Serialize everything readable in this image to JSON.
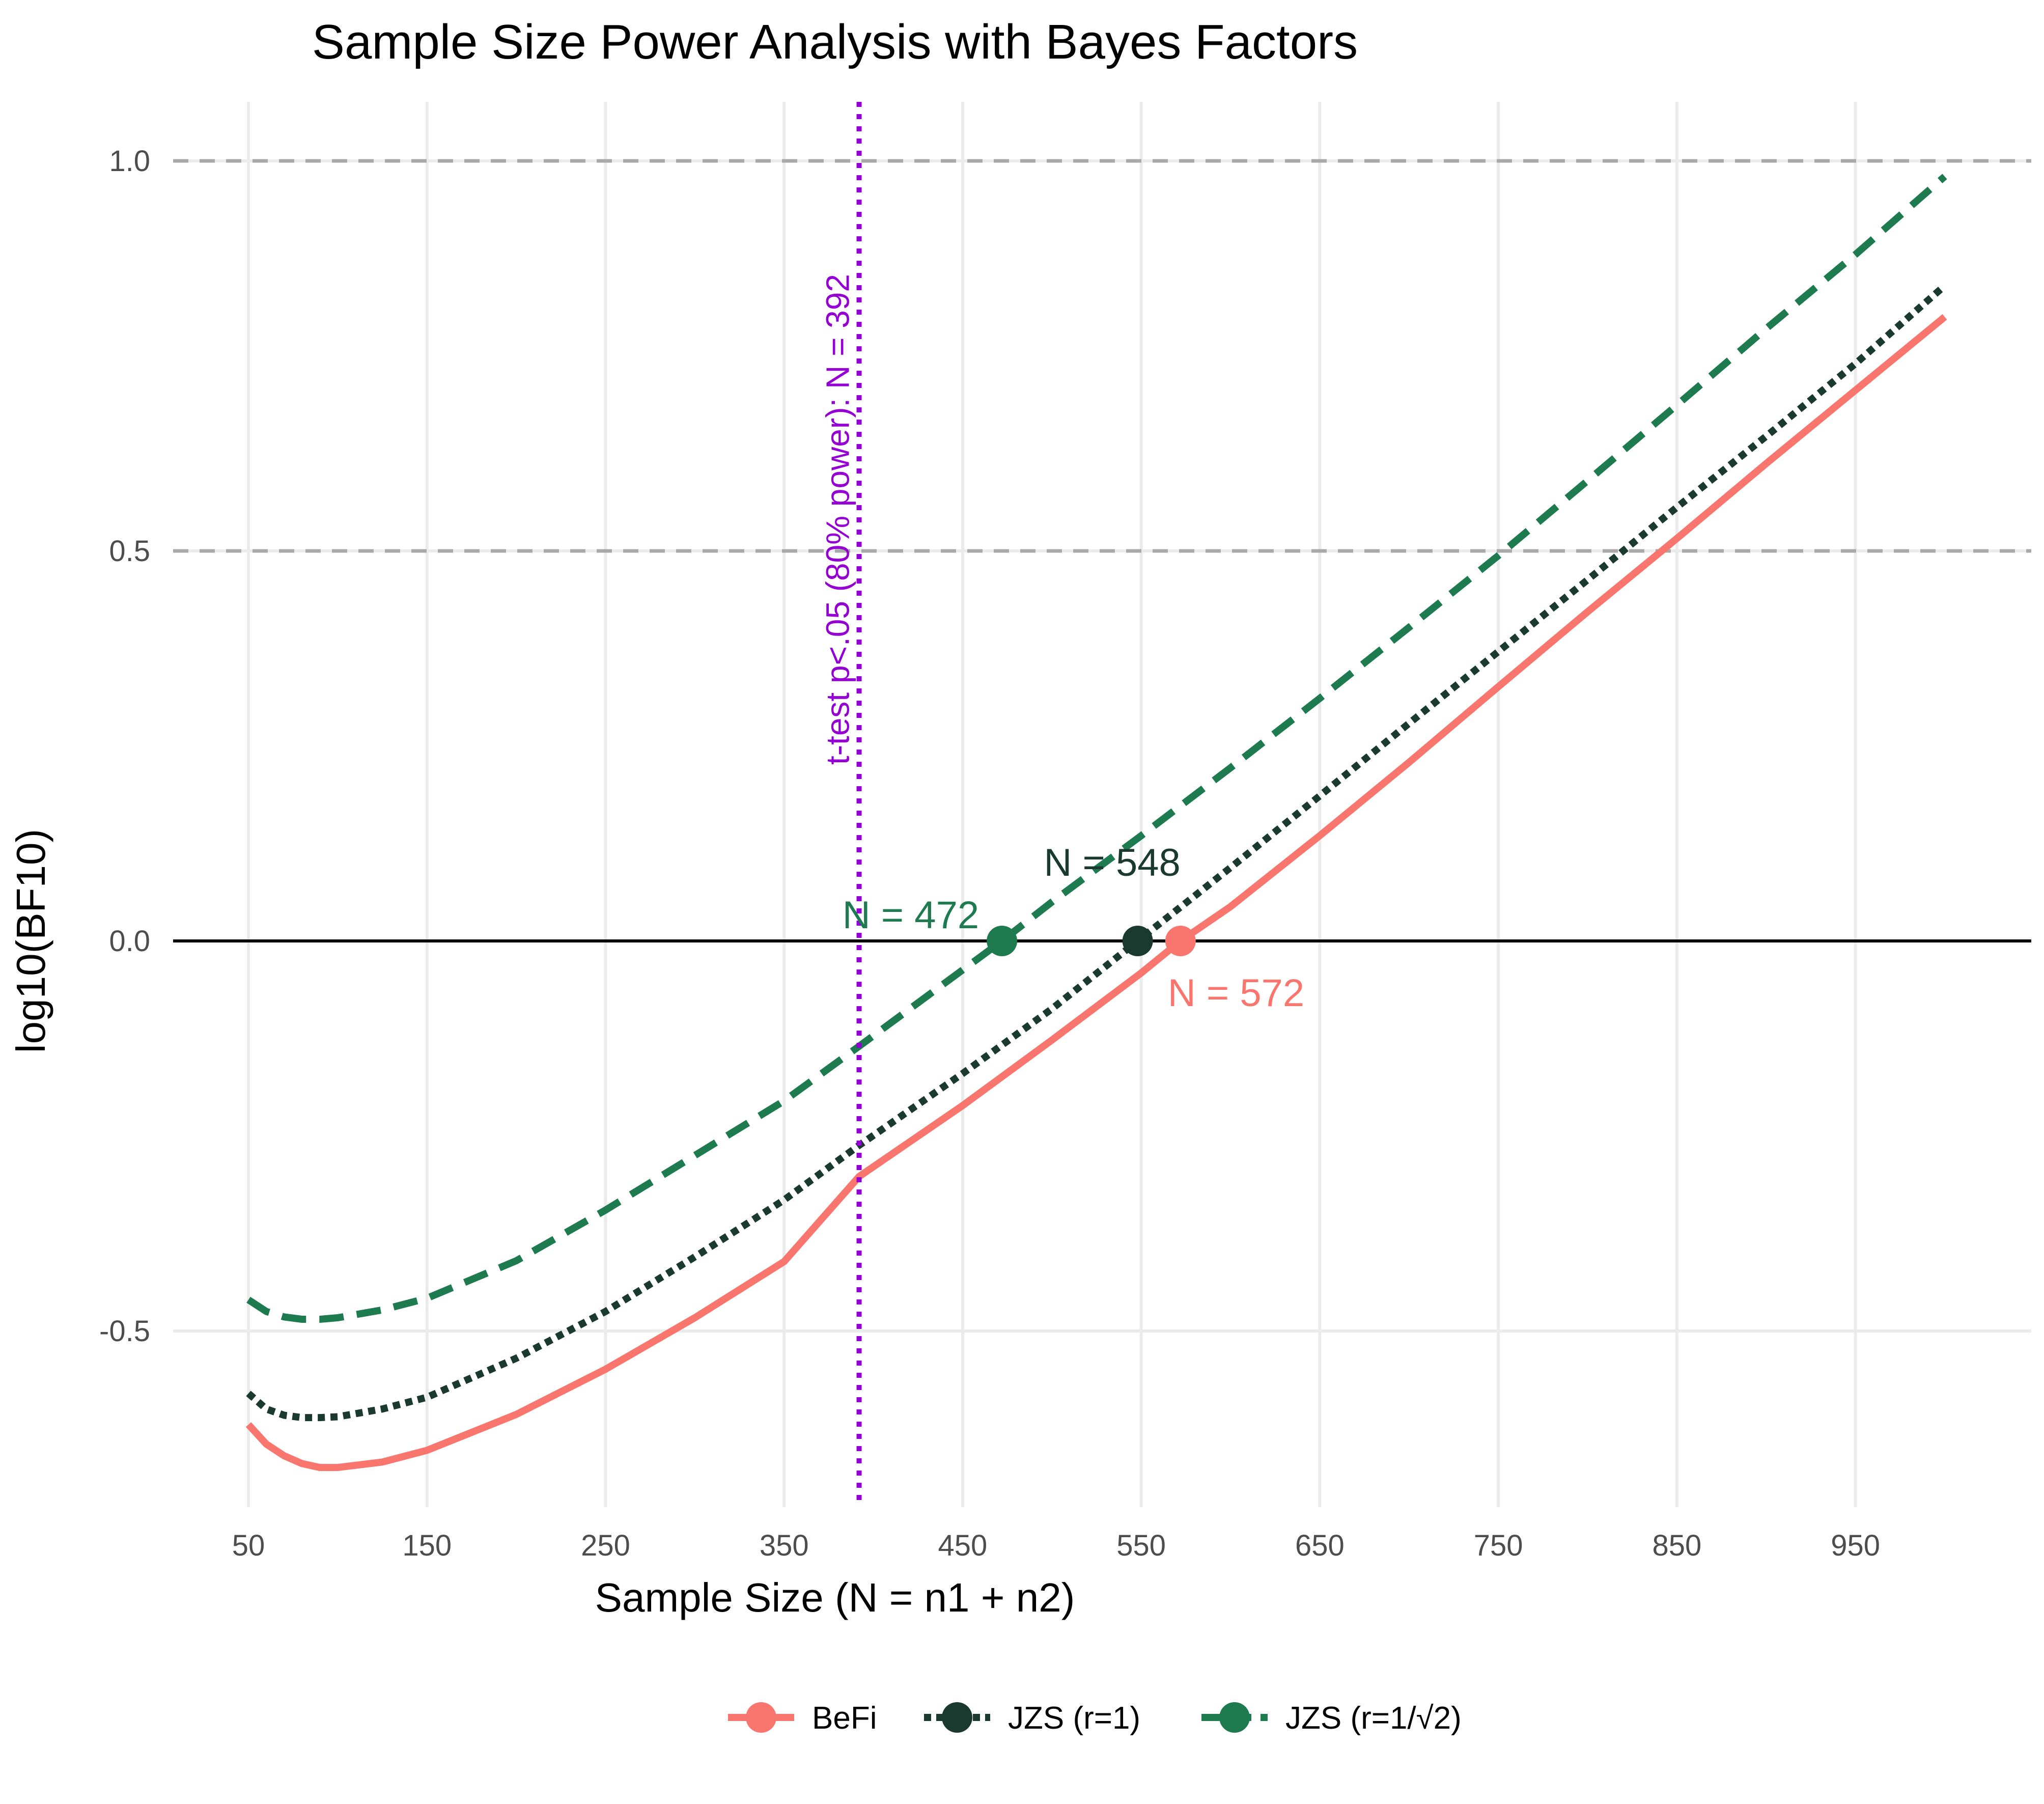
{
  "chart_data": {
    "type": "line",
    "title": "Sample Size Power Analysis with Bayes Factors",
    "xlabel": "Sample Size (N = n1 + n2)",
    "ylabel": "log10(BF10)",
    "xlim": [
      50,
      1000
    ],
    "ylim": [
      -0.72,
      1.08
    ],
    "x_ticks": [
      50,
      150,
      250,
      350,
      450,
      550,
      650,
      750,
      850,
      950
    ],
    "y_ticks": [
      -0.5,
      0.0,
      0.5,
      1.0
    ],
    "y_tick_labels": [
      "-0.5",
      "0.0",
      "0.5",
      "1.0"
    ],
    "grid": true,
    "legend_position": "bottom",
    "reference_lines": {
      "horizontal_dashed": [
        0.5,
        1.0
      ],
      "horizontal_solid": 0.0,
      "vertical_dotted": {
        "x": 392,
        "label": "t-test p<.05 (80% power): N = 392",
        "color": "#9400D3"
      }
    },
    "series": [
      {
        "name": "BeFi",
        "color": "#F8766D",
        "dash": "solid",
        "x": [
          50,
          60,
          70,
          80,
          90,
          100,
          125,
          150,
          200,
          250,
          300,
          350,
          392,
          450,
          500,
          550,
          572,
          600,
          650,
          700,
          750,
          800,
          850,
          900,
          950,
          1000
        ],
        "y": [
          -0.62,
          -0.645,
          -0.66,
          -0.67,
          -0.675,
          -0.675,
          -0.668,
          -0.653,
          -0.607,
          -0.549,
          -0.483,
          -0.411,
          -0.302,
          -0.211,
          -0.127,
          -0.041,
          0.0,
          0.044,
          0.135,
          0.229,
          0.326,
          0.422,
          0.516,
          0.612,
          0.706,
          0.8
        ]
      },
      {
        "name": "JZS (r=1)",
        "color": "#1B3A2F",
        "dash": "dotted",
        "x": [
          50,
          60,
          70,
          80,
          90,
          100,
          125,
          150,
          200,
          250,
          300,
          350,
          392,
          450,
          500,
          548,
          600,
          650,
          700,
          750,
          800,
          850,
          900,
          950,
          1000
        ],
        "y": [
          -0.58,
          -0.6,
          -0.608,
          -0.611,
          -0.611,
          -0.61,
          -0.6,
          -0.585,
          -0.535,
          -0.475,
          -0.405,
          -0.332,
          -0.262,
          -0.17,
          -0.087,
          0.0,
          0.094,
          0.186,
          0.279,
          0.371,
          0.463,
          0.556,
          0.647,
          0.74,
          0.84
        ]
      },
      {
        "name": "JZS (r=1/√2)",
        "color": "#1E7B50",
        "dash": "dashed",
        "x": [
          50,
          60,
          70,
          80,
          90,
          100,
          125,
          150,
          200,
          250,
          300,
          350,
          392,
          472,
          500,
          550,
          600,
          650,
          700,
          750,
          800,
          850,
          900,
          950,
          1000
        ],
        "y": [
          -0.46,
          -0.475,
          -0.482,
          -0.485,
          -0.485,
          -0.483,
          -0.473,
          -0.458,
          -0.41,
          -0.345,
          -0.275,
          -0.205,
          -0.135,
          0.0,
          0.05,
          0.135,
          0.222,
          0.311,
          0.402,
          0.494,
          0.59,
          0.687,
          0.785,
          0.88,
          0.98
        ]
      }
    ],
    "crossings": [
      {
        "series": "BeFi",
        "n": 572,
        "label": "N = 572"
      },
      {
        "series": "JZS (r=1)",
        "n": 548,
        "label": "N = 548"
      },
      {
        "series": "JZS (r=1/√2)",
        "n": 472,
        "label": "N = 472"
      }
    ]
  }
}
